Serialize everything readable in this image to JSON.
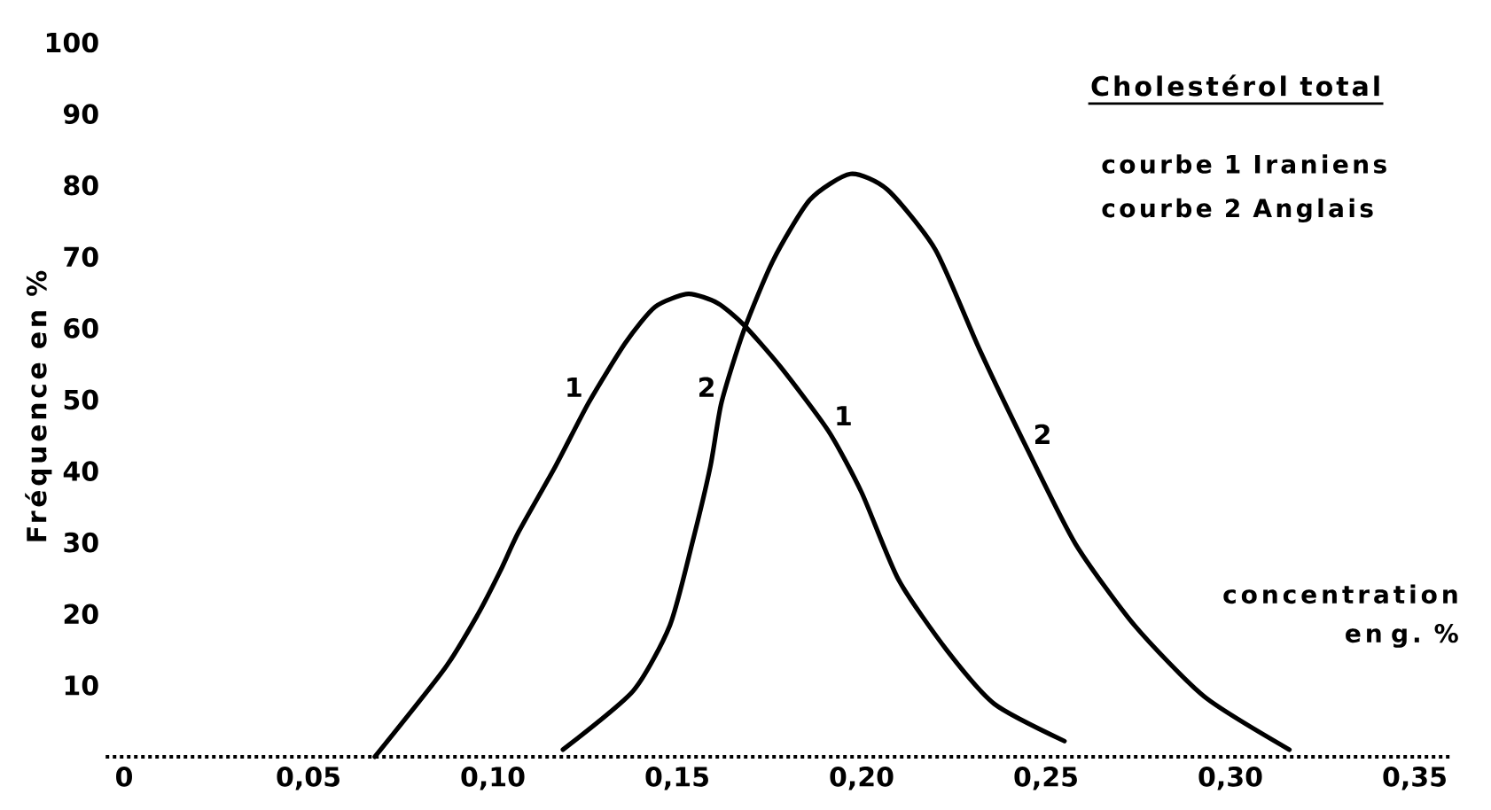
{
  "chart_data": {
    "type": "line",
    "title": "Cholestérol total",
    "xlabel": "concentration en g. %",
    "ylabel": "Fréquence en %",
    "xlim": [
      -0.005,
      0.36
    ],
    "ylim": [
      0,
      100
    ],
    "xticks": [
      0,
      {
        "value": 0.05,
        "label": "0,05"
      },
      {
        "value": 0.1,
        "label": "0,10"
      },
      {
        "value": 0.15,
        "label": "0,15"
      },
      {
        "value": 0.2,
        "label": "0,20"
      },
      {
        "value": 0.25,
        "label": "0,25"
      },
      {
        "value": 0.3,
        "label": "0,30"
      },
      {
        "value": 0.35,
        "label": "0,35"
      }
    ],
    "yticks": [
      10,
      20,
      30,
      40,
      50,
      60,
      70,
      80,
      90,
      100
    ],
    "series": [
      {
        "color": "#000000",
        "x": [
          0.068,
          0.087,
          0.096,
          0.102,
          0.107,
          0.117,
          0.126,
          0.136,
          0.144,
          0.153,
          0.161,
          0.168,
          0.178,
          0.191,
          0.2,
          0.21,
          0.223,
          0.236,
          0.255
        ],
        "values": [
          0,
          12.4,
          20,
          26,
          31.5,
          40.7,
          49.6,
          58,
          63,
          64.8,
          63.5,
          60.5,
          54.6,
          45.6,
          37,
          24.8,
          15,
          7.4,
          2.2
        ]
      },
      {
        "color": "#000000",
        "x": [
          0.119,
          0.138,
          0.148,
          0.154,
          0.159,
          0.162,
          0.168,
          0.176,
          0.186,
          0.197,
          0.207,
          0.22,
          0.232,
          0.245,
          0.258,
          0.274,
          0.293,
          0.316
        ],
        "values": [
          1,
          9.2,
          18.4,
          29.8,
          40.7,
          49.6,
          59.6,
          69.5,
          78,
          81.6,
          79.4,
          71,
          57,
          43,
          29.8,
          18.4,
          8.4,
          1
        ]
      }
    ],
    "annotations": [
      "courbe 1 Iraniens",
      "courbe 2 Anglais",
      {
        "text": "1",
        "x": 0.126,
        "y": 49.6
      },
      {
        "text": "1",
        "x": 0.191,
        "y": 45.6
      },
      {
        "text": "2",
        "x": 0.162,
        "y": 49.6
      },
      {
        "text": "2",
        "x": 0.245,
        "y": 43
      }
    ]
  }
}
